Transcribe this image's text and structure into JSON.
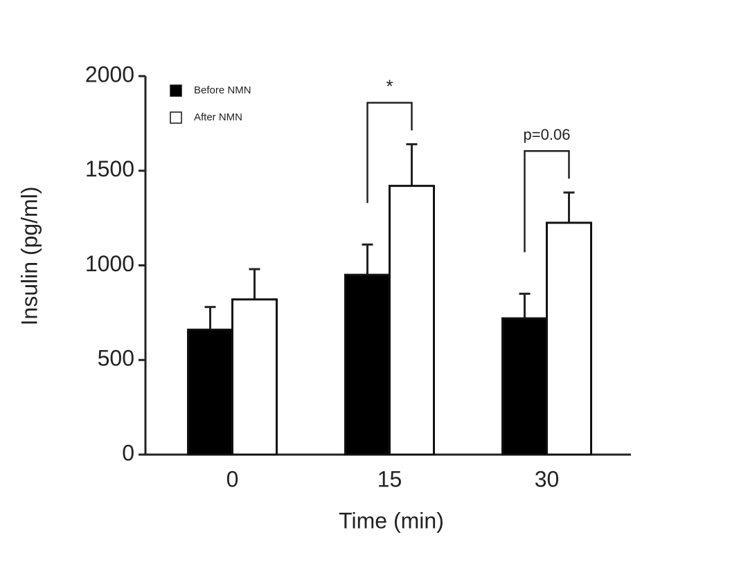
{
  "chart_data": {
    "type": "bar",
    "x_label": "Time (min)",
    "y_label": "Insulin (pg/ml)",
    "categories": [
      "0",
      "15",
      "30"
    ],
    "series": [
      {
        "name": "Before NMN",
        "color": "#000000",
        "values": [
          660,
          950,
          720
        ],
        "errors": [
          120,
          160,
          130
        ]
      },
      {
        "name": "After NMN",
        "color": "#ffffff",
        "values": [
          820,
          1420,
          1225
        ],
        "errors": [
          160,
          220,
          160
        ]
      }
    ],
    "annotations": [
      "*",
      "p=0.06"
    ],
    "ylim": [
      0,
      2000
    ],
    "yticks": [
      0,
      500,
      1000,
      1500,
      2000
    ],
    "legend": "upper left"
  }
}
